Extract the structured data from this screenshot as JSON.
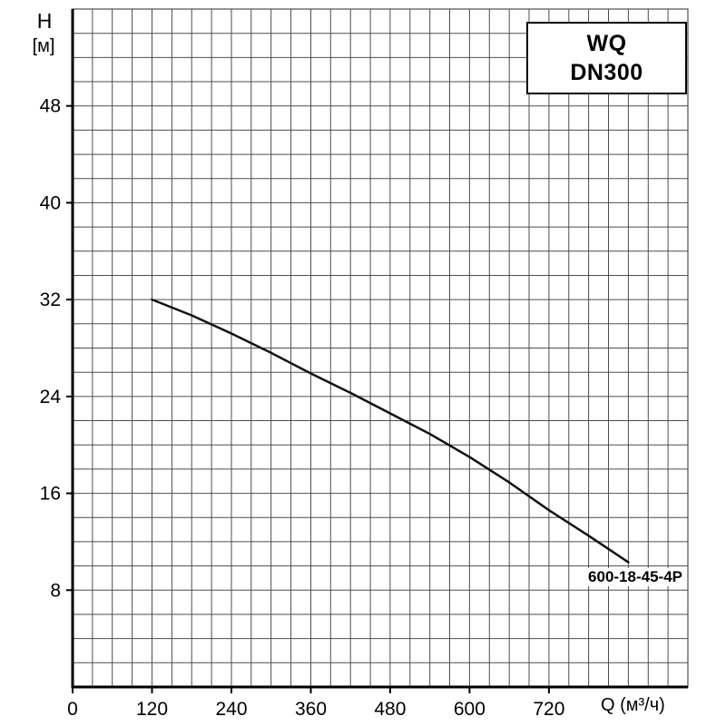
{
  "chart": {
    "y_axis_letter": "H",
    "y_axis_unit": "[м]",
    "x_axis_title": "Q (м³/ч)",
    "box_line1": "WQ",
    "box_line2": "DN300",
    "curve_label": "600-18-45-4P"
  },
  "chart_data": {
    "type": "line",
    "title": "",
    "xlabel": "Q (м³/ч)",
    "ylabel": "H [м]",
    "xlim": [
      0,
      930
    ],
    "ylim": [
      0,
      56
    ],
    "x_ticks": [
      0,
      120,
      240,
      360,
      480,
      600,
      720
    ],
    "y_ticks": [
      8,
      16,
      24,
      32,
      40,
      48
    ],
    "x_minor_step": 30,
    "y_minor_step": 2,
    "grid": true,
    "legend": "WQ DN300",
    "legend_position": "top-right",
    "series": [
      {
        "name": "600-18-45-4P",
        "points": [
          [
            120,
            32.0
          ],
          [
            180,
            30.7
          ],
          [
            240,
            29.2
          ],
          [
            300,
            27.6
          ],
          [
            360,
            25.9
          ],
          [
            420,
            24.3
          ],
          [
            480,
            22.6
          ],
          [
            540,
            20.9
          ],
          [
            600,
            19.0
          ],
          [
            660,
            16.9
          ],
          [
            720,
            14.6
          ],
          [
            780,
            12.5
          ],
          [
            840,
            10.3
          ]
        ]
      }
    ],
    "colors": {
      "curve": "#111111",
      "grid": "#4d4d4d",
      "axis": "#000000",
      "text": "#000000",
      "background": "#ffffff"
    }
  }
}
